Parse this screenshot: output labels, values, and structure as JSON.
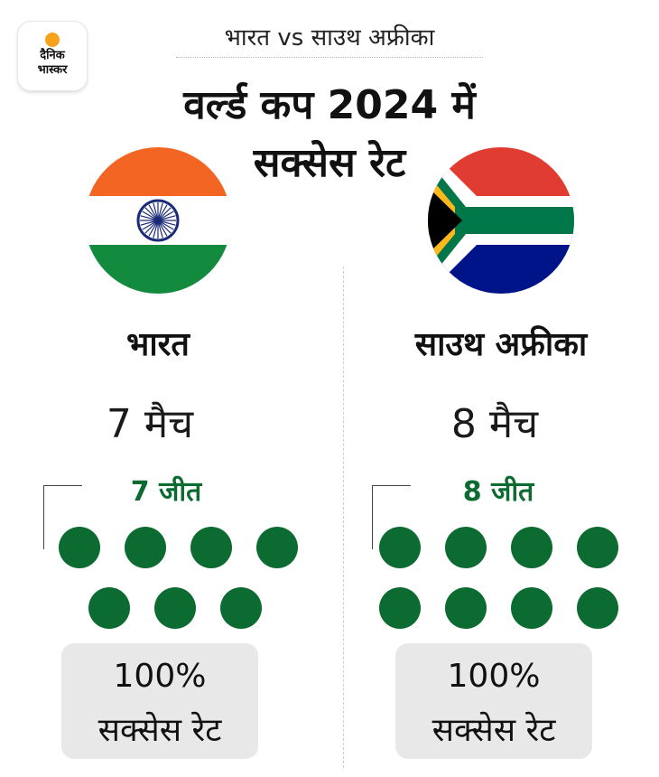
{
  "logo": {
    "line1": "दैनिक",
    "line2": "भास्कर"
  },
  "header": {
    "subtitle": "भारत vs साउथ अफ्रीका",
    "title_line1": "वर्ल्ड कप 2024 में",
    "title_line2": "सक्सेस रेट"
  },
  "teams": [
    {
      "name": "भारत",
      "matches": "7 मैच",
      "wins": "7 जीत",
      "win_count": 7,
      "rate_value": "100%",
      "rate_label": "सक्सेस रेट",
      "flag": "india-flag"
    },
    {
      "name": "साउथ अफ्रीका",
      "matches": "8 मैच",
      "wins": "8 जीत",
      "win_count": 8,
      "rate_value": "100%",
      "rate_label": "सक्सेस रेट",
      "flag": "south-africa-flag"
    }
  ],
  "colors": {
    "win_green": "#0c6b30",
    "india_saffron": "#f26522",
    "india_green": "#138b3e",
    "chakra_blue": "#1c2b78",
    "sa_red": "#e03c31",
    "sa_blue": "#001489",
    "sa_green": "#007749",
    "sa_gold": "#ffb81c",
    "box_gray": "#e8e8e8"
  }
}
